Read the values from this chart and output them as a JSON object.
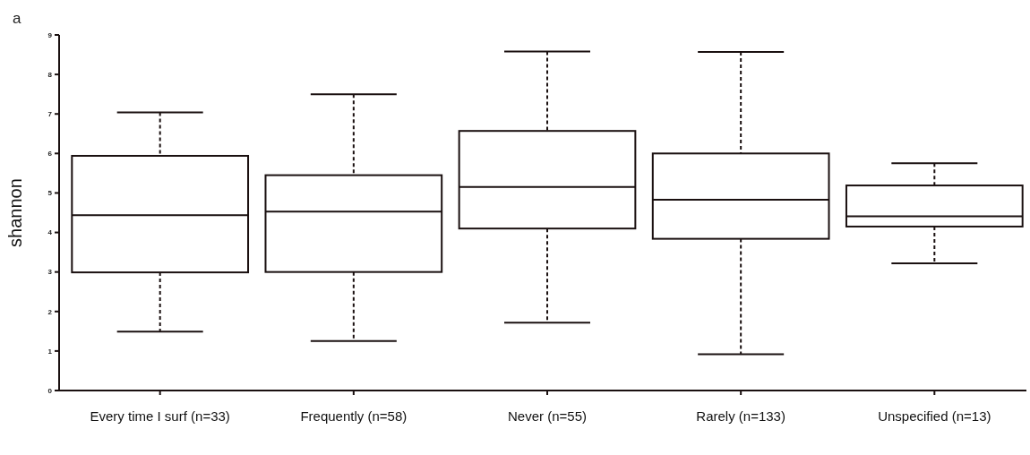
{
  "chart_data": {
    "type": "box",
    "ylabel": "shannon",
    "annotations": [
      "a"
    ],
    "categories": [
      "Every time I surf (n=33)",
      "Frequently (n=58)",
      "Never (n=55)",
      "Rarely (n=133)",
      "Unspecified (n=13)"
    ],
    "boxes": [
      {
        "low": 1.49,
        "q1": 2.99,
        "median": 4.44,
        "q3": 5.94,
        "high": 7.04
      },
      {
        "low": 1.25,
        "q1": 3.0,
        "median": 4.53,
        "q3": 5.45,
        "high": 7.5
      },
      {
        "low": 1.72,
        "q1": 4.1,
        "median": 5.15,
        "q3": 6.57,
        "high": 8.58
      },
      {
        "low": 0.92,
        "q1": 3.84,
        "median": 4.83,
        "q3": 6.0,
        "high": 8.57
      },
      {
        "low": 3.22,
        "q1": 4.15,
        "median": 4.41,
        "q3": 5.19,
        "high": 5.75
      }
    ],
    "ylim": [
      0,
      9
    ],
    "yticks": [
      0,
      1,
      2,
      3,
      4,
      5,
      6,
      7,
      8,
      9
    ],
    "grid": false
  }
}
